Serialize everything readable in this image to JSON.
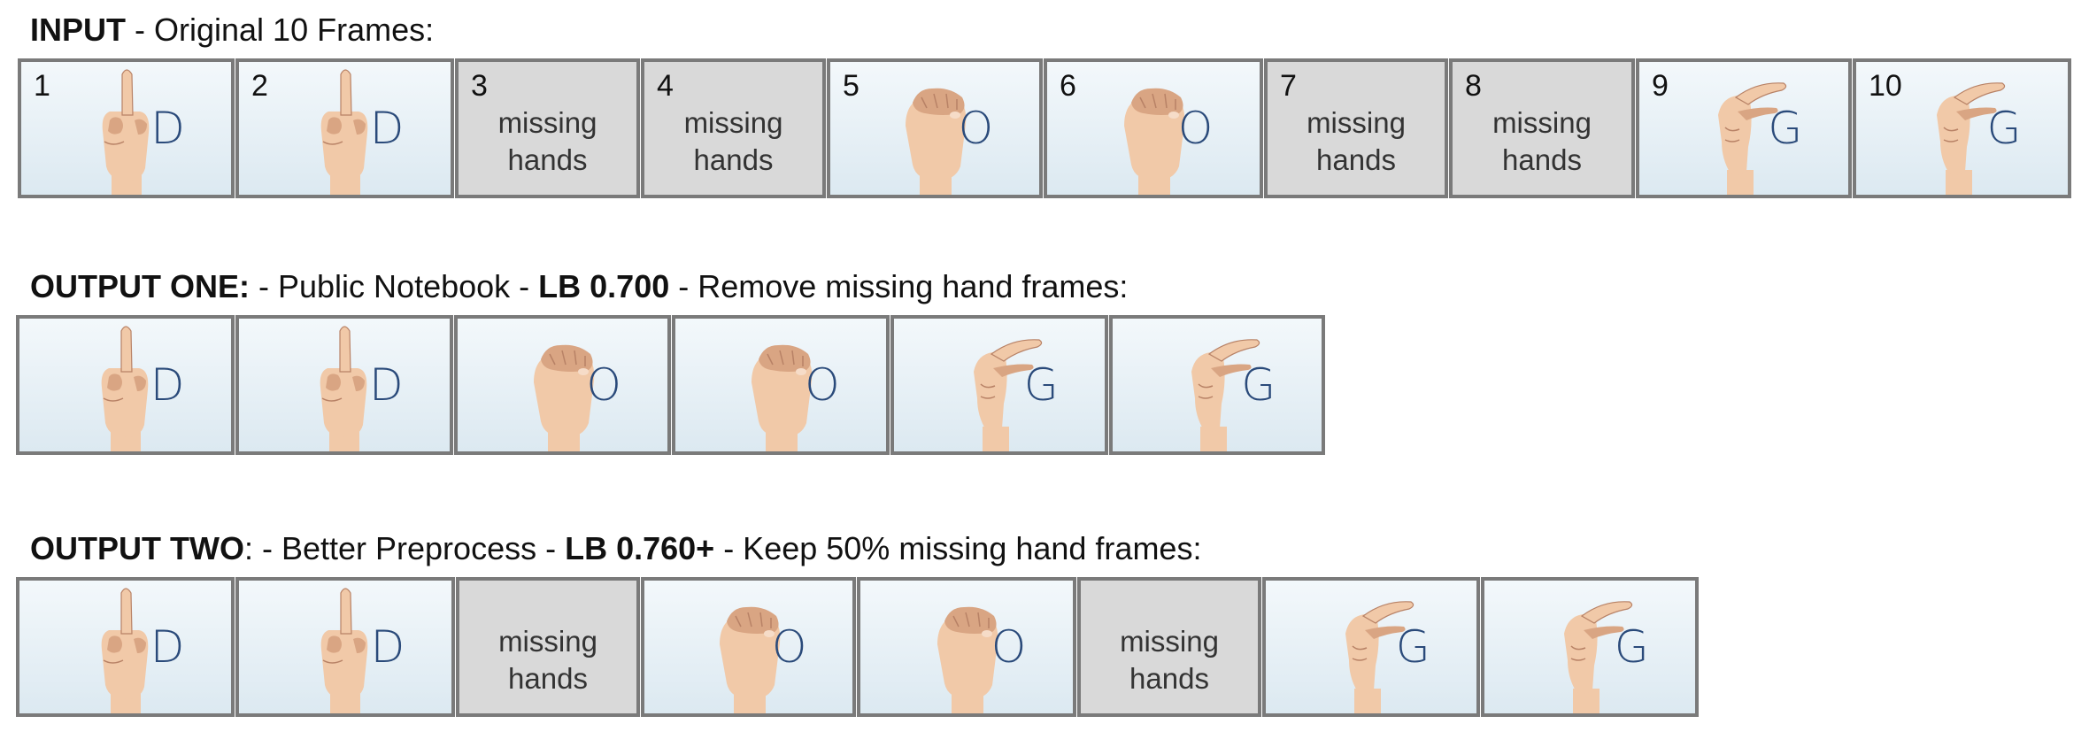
{
  "rows": [
    {
      "title": {
        "bold": "INPUT",
        "rest1": " - Original 10 Frames:",
        "lb": "",
        "rest2": ""
      },
      "frames": [
        {
          "num": "1",
          "type": "hand",
          "letter": "D"
        },
        {
          "num": "2",
          "type": "hand",
          "letter": "D"
        },
        {
          "num": "3",
          "type": "missing",
          "line1": "missing",
          "line2": "hands"
        },
        {
          "num": "4",
          "type": "missing",
          "line1": "missing",
          "line2": "hands"
        },
        {
          "num": "5",
          "type": "hand",
          "letter": "O"
        },
        {
          "num": "6",
          "type": "hand",
          "letter": "O"
        },
        {
          "num": "7",
          "type": "missing",
          "line1": "missing",
          "line2": "hands"
        },
        {
          "num": "8",
          "type": "missing",
          "line1": "missing",
          "line2": "hands"
        },
        {
          "num": "9",
          "type": "hand",
          "letter": "G"
        },
        {
          "num": "10",
          "type": "hand",
          "letter": "G"
        }
      ]
    },
    {
      "title": {
        "bold": "OUTPUT ONE:",
        "rest1": " - Public Notebook - ",
        "lb": "LB 0.700",
        "rest2": " - Remove missing hand frames:"
      },
      "frames": [
        {
          "type": "hand",
          "letter": "D"
        },
        {
          "type": "hand",
          "letter": "D"
        },
        {
          "type": "hand",
          "letter": "O"
        },
        {
          "type": "hand",
          "letter": "O"
        },
        {
          "type": "hand",
          "letter": "G"
        },
        {
          "type": "hand",
          "letter": "G"
        }
      ]
    },
    {
      "title": {
        "bold": "OUTPUT TWO",
        "rest1": ": - Better Preprocess - ",
        "lb": "LB 0.760+",
        "rest2": " - Keep 50% missing hand frames:"
      },
      "frames": [
        {
          "type": "hand",
          "letter": "D"
        },
        {
          "type": "hand",
          "letter": "D"
        },
        {
          "type": "missing",
          "line1": "missing",
          "line2": "hands"
        },
        {
          "type": "hand",
          "letter": "O"
        },
        {
          "type": "hand",
          "letter": "O"
        },
        {
          "type": "missing",
          "line1": "missing",
          "line2": "hands"
        },
        {
          "type": "hand",
          "letter": "G"
        },
        {
          "type": "hand",
          "letter": "G"
        }
      ]
    }
  ]
}
